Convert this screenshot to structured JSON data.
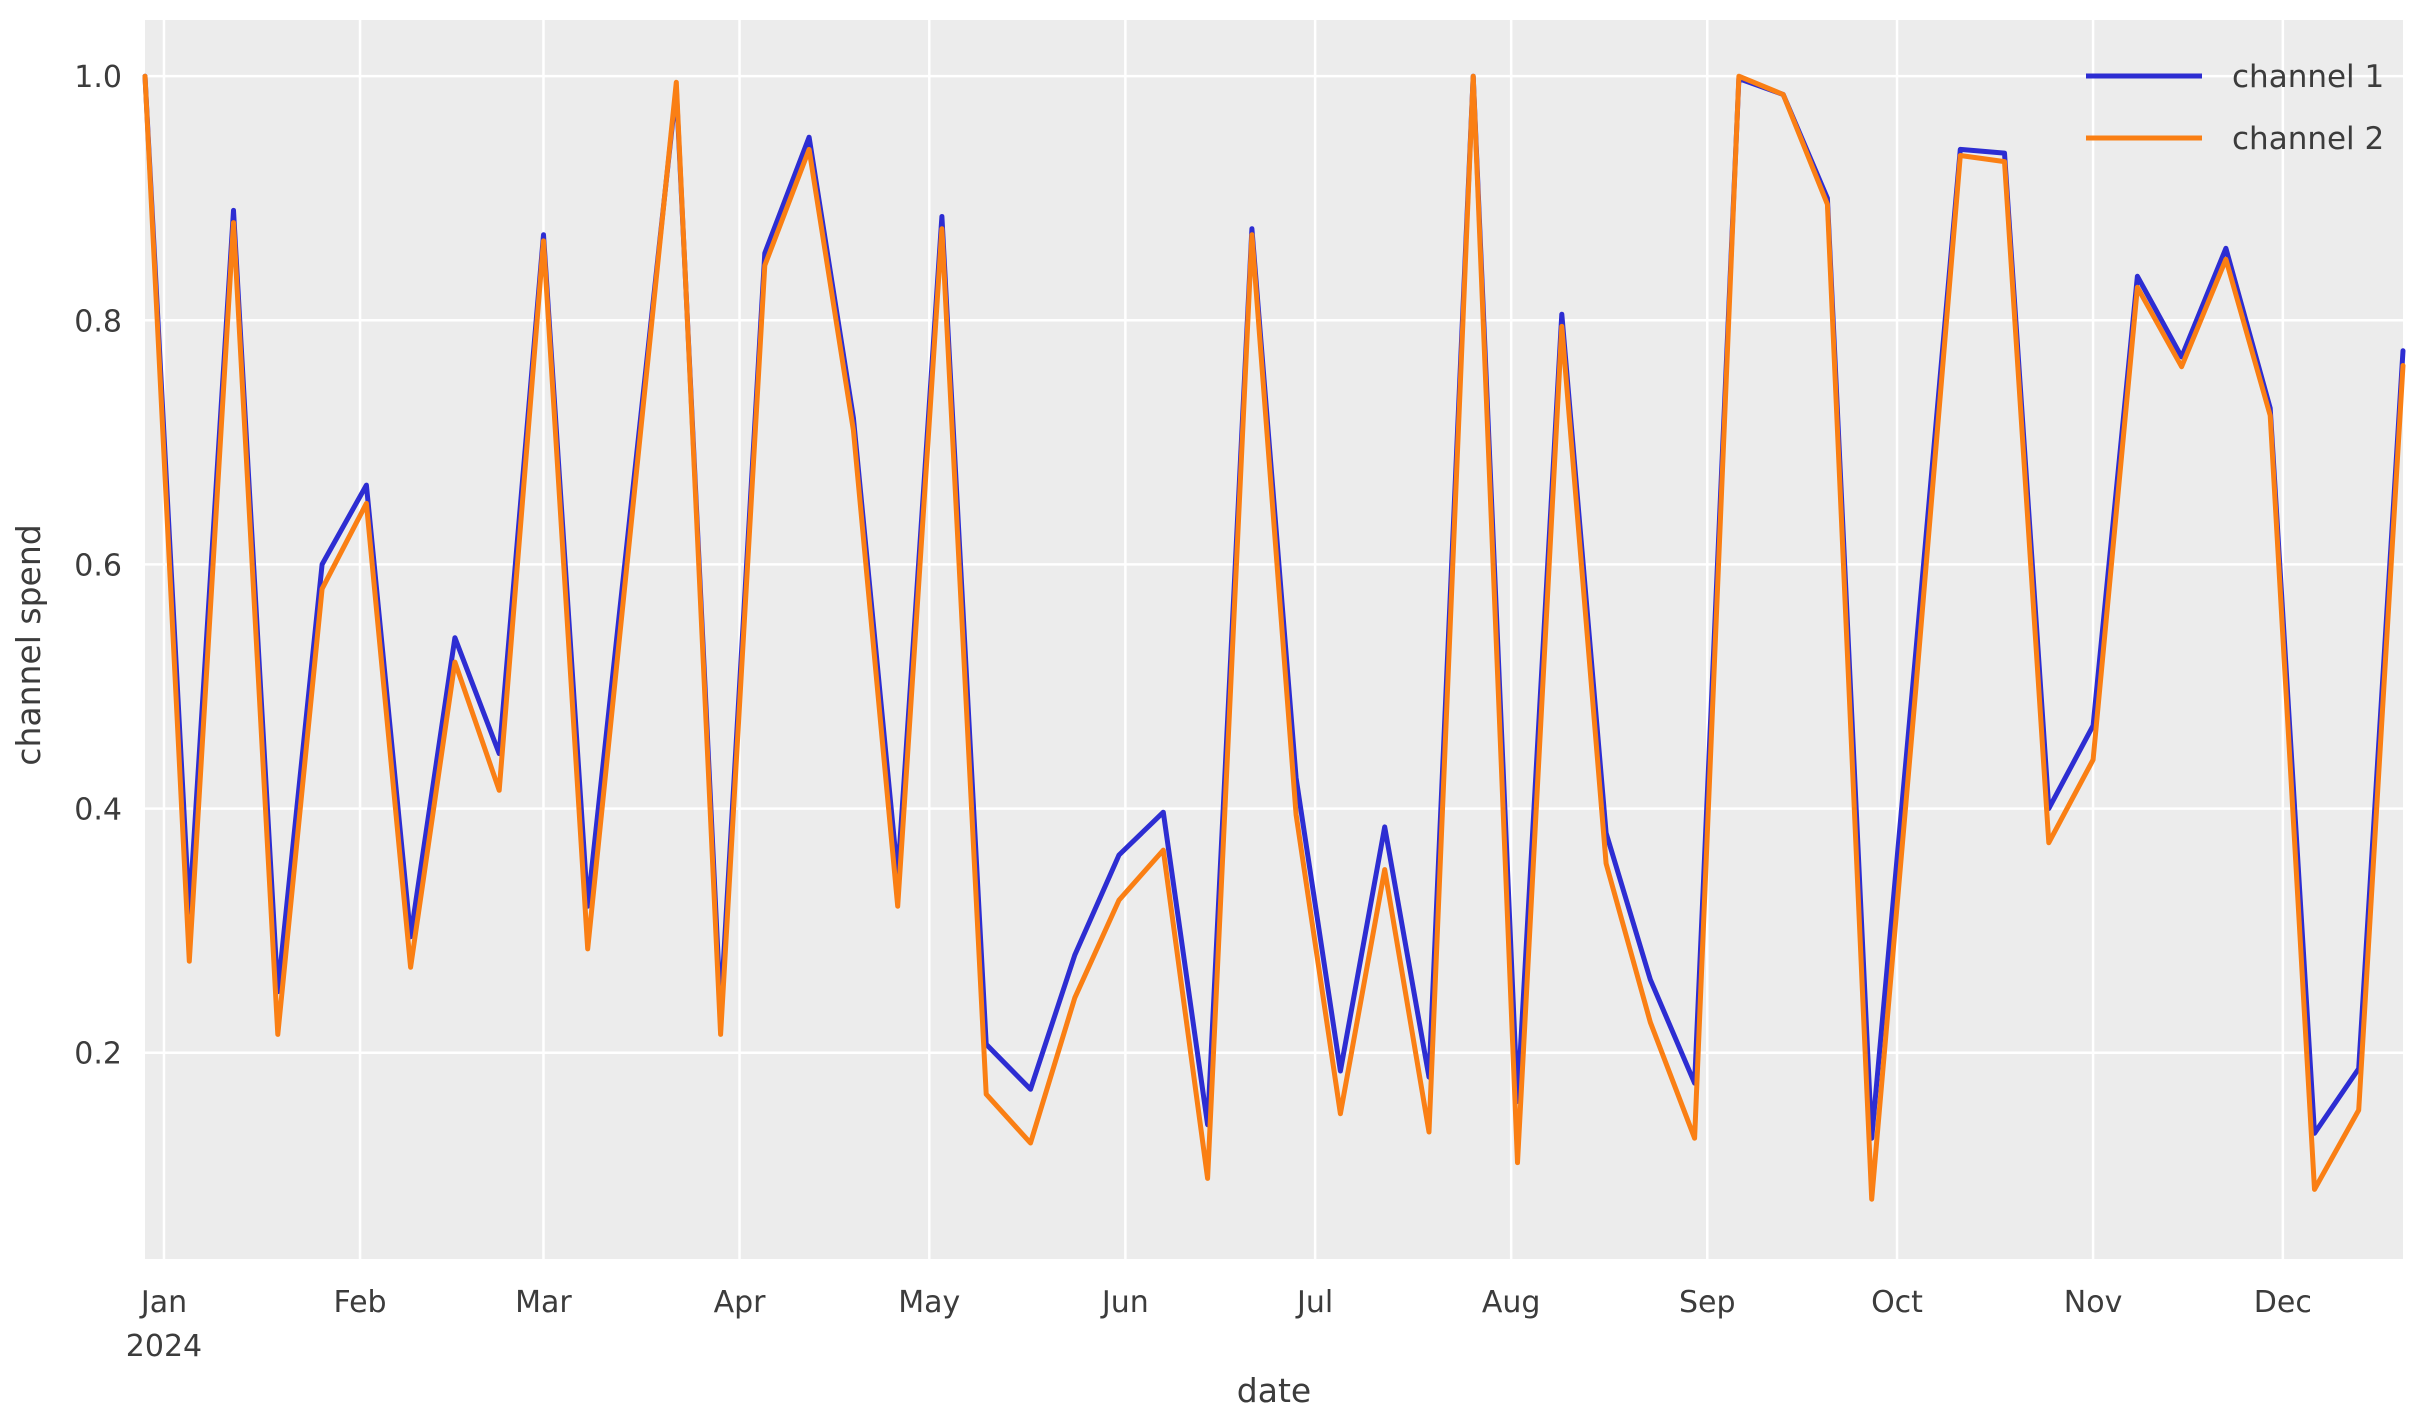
{
  "chart_data": {
    "type": "line",
    "title": "",
    "xlabel": "date",
    "ylabel": "channel spend",
    "grid": true,
    "plot_background": "#ececec",
    "grid_color": "#ffffff",
    "text_color": "#3c3c3c",
    "legend_position": "upper right",
    "ylim": [
      0.031,
      1.046
    ],
    "yticks": [
      0.2,
      0.4,
      0.6,
      0.8,
      1.0
    ],
    "ytick_labels": [
      "0.2",
      "0.4",
      "0.6",
      "0.8",
      "1.0"
    ],
    "xticks": [
      {
        "date": "2024-01-01",
        "label": "Jan",
        "sublabel": "2024"
      },
      {
        "date": "2024-02-01",
        "label": "Feb"
      },
      {
        "date": "2024-03-01",
        "label": "Mar"
      },
      {
        "date": "2024-04-01",
        "label": "Apr"
      },
      {
        "date": "2024-05-01",
        "label": "May"
      },
      {
        "date": "2024-06-01",
        "label": "Jun"
      },
      {
        "date": "2024-07-01",
        "label": "Jul"
      },
      {
        "date": "2024-08-01",
        "label": "Aug"
      },
      {
        "date": "2024-09-01",
        "label": "Sep"
      },
      {
        "date": "2024-10-01",
        "label": "Oct"
      },
      {
        "date": "2024-11-01",
        "label": "Nov"
      },
      {
        "date": "2024-12-01",
        "label": "Dec"
      }
    ],
    "x": [
      "2023-12-29",
      "2024-01-05",
      "2024-01-12",
      "2024-01-19",
      "2024-01-26",
      "2024-02-02",
      "2024-02-09",
      "2024-02-16",
      "2024-02-23",
      "2024-03-01",
      "2024-03-08",
      "2024-03-15",
      "2024-03-22",
      "2024-03-29",
      "2024-04-05",
      "2024-04-12",
      "2024-04-19",
      "2024-04-26",
      "2024-05-03",
      "2024-05-10",
      "2024-05-17",
      "2024-05-24",
      "2024-05-31",
      "2024-06-07",
      "2024-06-14",
      "2024-06-21",
      "2024-06-28",
      "2024-07-05",
      "2024-07-12",
      "2024-07-19",
      "2024-07-26",
      "2024-08-02",
      "2024-08-09",
      "2024-08-16",
      "2024-08-23",
      "2024-08-30",
      "2024-09-06",
      "2024-09-13",
      "2024-09-20",
      "2024-09-27",
      "2024-10-04",
      "2024-10-11",
      "2024-10-18",
      "2024-10-25",
      "2024-11-01",
      "2024-11-08",
      "2024-11-15",
      "2024-11-22",
      "2024-11-29",
      "2024-12-06",
      "2024-12-13",
      "2024-12-20"
    ],
    "series": [
      {
        "name": "channel 1",
        "color": "#2d2dd2",
        "values": [
          1.0,
          0.315,
          0.89,
          0.25,
          0.6,
          0.665,
          0.295,
          0.54,
          0.445,
          0.87,
          0.32,
          0.655,
          0.99,
          0.235,
          0.855,
          0.95,
          0.72,
          0.345,
          0.885,
          0.207,
          0.17,
          0.28,
          0.362,
          0.397,
          0.141,
          0.875,
          0.425,
          0.185,
          0.385,
          0.18,
          1.0,
          0.16,
          0.805,
          0.38,
          0.26,
          0.175,
          0.998,
          0.985,
          0.9,
          0.13,
          0.53,
          0.94,
          0.937,
          0.4,
          0.468,
          0.836,
          0.77,
          0.859,
          0.728,
          0.134,
          0.187,
          0.775
        ]
      },
      {
        "name": "channel 2",
        "color": "#fa7f14",
        "values": [
          1.0,
          0.275,
          0.88,
          0.215,
          0.58,
          0.65,
          0.27,
          0.52,
          0.415,
          0.865,
          0.285,
          0.64,
          0.995,
          0.215,
          0.845,
          0.94,
          0.71,
          0.32,
          0.875,
          0.166,
          0.126,
          0.245,
          0.325,
          0.366,
          0.097,
          0.87,
          0.395,
          0.15,
          0.35,
          0.135,
          1.0,
          0.11,
          0.795,
          0.355,
          0.225,
          0.13,
          1.0,
          0.985,
          0.895,
          0.08,
          0.5,
          0.935,
          0.93,
          0.372,
          0.44,
          0.827,
          0.762,
          0.85,
          0.722,
          0.088,
          0.153,
          0.763
        ]
      }
    ]
  }
}
